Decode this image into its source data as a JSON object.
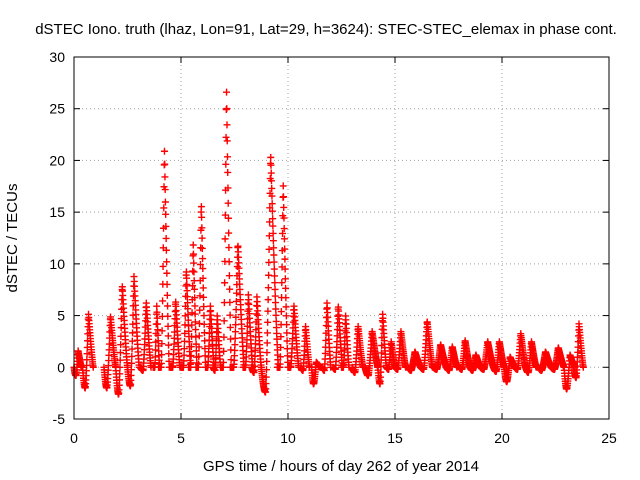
{
  "chart_data": {
    "type": "scatter",
    "title": "dSTEC Iono. truth (lhaz, Lon=91, Lat=29, h=3624): STEC-STEC_elemax in phase cont.",
    "xlabel": "GPS time / hours of day 262 of year 2014",
    "ylabel": "dSTEC  / TECUs",
    "xlim": [
      0,
      25
    ],
    "ylim": [
      -5,
      30
    ],
    "x_ticks": [
      0,
      5,
      10,
      15,
      20,
      25
    ],
    "y_ticks": [
      -5,
      0,
      5,
      10,
      15,
      20,
      25,
      30
    ],
    "x_tick_labels": [
      "0",
      "5",
      "10",
      "15",
      "20",
      "25"
    ],
    "y_tick_labels": [
      "-5",
      "0",
      "5",
      "10",
      "15",
      "20",
      "25",
      "30"
    ],
    "grid": true,
    "marker": "+",
    "color": "#ff0000",
    "arcs": [
      {
        "start": 0.0,
        "end": 0.35,
        "peak": 1.6,
        "low": -0.8
      },
      {
        "start": 0.4,
        "end": 0.9,
        "peak": 5.2,
        "low": -2.0
      },
      {
        "start": 1.4,
        "end": 1.95,
        "peak": 5.0,
        "low": -2.0
      },
      {
        "start": 1.95,
        "end": 2.5,
        "peak": 8.0,
        "low": -2.6
      },
      {
        "start": 2.5,
        "end": 3.05,
        "peak": 8.8,
        "low": -1.8
      },
      {
        "start": 3.1,
        "end": 3.6,
        "peak": 6.3,
        "low": -0.3
      },
      {
        "start": 3.7,
        "end": 4.0,
        "peak": 6.0,
        "low": 0.0
      },
      {
        "start": 3.95,
        "end": 4.45,
        "peak": 21.2,
        "low": 0.0
      },
      {
        "start": 4.5,
        "end": 4.95,
        "peak": 6.5,
        "low": 0.0
      },
      {
        "start": 5.0,
        "end": 5.45,
        "peak": 9.5,
        "low": 0.0
      },
      {
        "start": 5.35,
        "end": 5.75,
        "peak": 12.0,
        "low": 0.0
      },
      {
        "start": 5.7,
        "end": 6.15,
        "peak": 16.0,
        "low": 0.0
      },
      {
        "start": 6.15,
        "end": 6.55,
        "peak": 6.0,
        "low": 0.0
      },
      {
        "start": 6.5,
        "end": 6.85,
        "peak": 5.0,
        "low": -0.3
      },
      {
        "start": 6.85,
        "end": 7.35,
        "peak": 27.0,
        "low": 0.0
      },
      {
        "start": 7.3,
        "end": 7.95,
        "peak": 12.0,
        "low": 0.0
      },
      {
        "start": 7.9,
        "end": 8.35,
        "peak": 7.0,
        "low": 0.0
      },
      {
        "start": 8.3,
        "end": 8.75,
        "peak": 6.8,
        "low": -0.5
      },
      {
        "start": 8.75,
        "end": 9.55,
        "peak": 20.6,
        "low": -2.4
      },
      {
        "start": 9.5,
        "end": 10.0,
        "peak": 17.8,
        "low": 0.0
      },
      {
        "start": 10.0,
        "end": 10.5,
        "peak": 6.0,
        "low": 0.0
      },
      {
        "start": 10.6,
        "end": 11.0,
        "peak": 4.0,
        "low": -0.3
      },
      {
        "start": 11.1,
        "end": 11.5,
        "peak": 0.5,
        "low": -1.6
      },
      {
        "start": 11.6,
        "end": 12.0,
        "peak": 6.3,
        "low": -0.3
      },
      {
        "start": 12.1,
        "end": 12.55,
        "peak": 6.0,
        "low": -0.2
      },
      {
        "start": 12.5,
        "end": 12.85,
        "peak": 5.0,
        "low": 0.0
      },
      {
        "start": 13.0,
        "end": 13.5,
        "peak": 4.0,
        "low": -0.5
      },
      {
        "start": 13.6,
        "end": 14.2,
        "peak": 3.5,
        "low": -0.8
      },
      {
        "start": 14.2,
        "end": 14.6,
        "peak": 5.2,
        "low": -1.6
      },
      {
        "start": 14.6,
        "end": 15.0,
        "peak": 2.5,
        "low": -0.2
      },
      {
        "start": 15.0,
        "end": 15.5,
        "peak": 3.5,
        "low": -0.2
      },
      {
        "start": 15.6,
        "end": 16.2,
        "peak": 1.5,
        "low": -0.3
      },
      {
        "start": 16.2,
        "end": 16.75,
        "peak": 4.5,
        "low": -0.2
      },
      {
        "start": 16.8,
        "end": 17.4,
        "peak": 2.2,
        "low": -0.2
      },
      {
        "start": 17.4,
        "end": 17.9,
        "peak": 2.0,
        "low": -0.3
      },
      {
        "start": 18.0,
        "end": 18.5,
        "peak": 2.6,
        "low": -0.2
      },
      {
        "start": 18.5,
        "end": 19.0,
        "peak": 1.2,
        "low": -0.3
      },
      {
        "start": 19.0,
        "end": 19.6,
        "peak": 2.5,
        "low": -0.2
      },
      {
        "start": 19.6,
        "end": 20.1,
        "peak": 2.5,
        "low": -0.4
      },
      {
        "start": 20.1,
        "end": 20.6,
        "peak": 1.0,
        "low": -1.4
      },
      {
        "start": 20.6,
        "end": 21.1,
        "peak": 3.3,
        "low": -0.2
      },
      {
        "start": 21.1,
        "end": 21.6,
        "peak": 2.5,
        "low": -0.5
      },
      {
        "start": 21.7,
        "end": 22.3,
        "peak": 1.5,
        "low": -0.3
      },
      {
        "start": 22.3,
        "end": 22.9,
        "peak": 1.9,
        "low": -0.2
      },
      {
        "start": 22.9,
        "end": 23.4,
        "peak": 1.2,
        "low": -2.1
      },
      {
        "start": 23.35,
        "end": 23.8,
        "peak": 4.2,
        "low": -1.0
      }
    ]
  }
}
